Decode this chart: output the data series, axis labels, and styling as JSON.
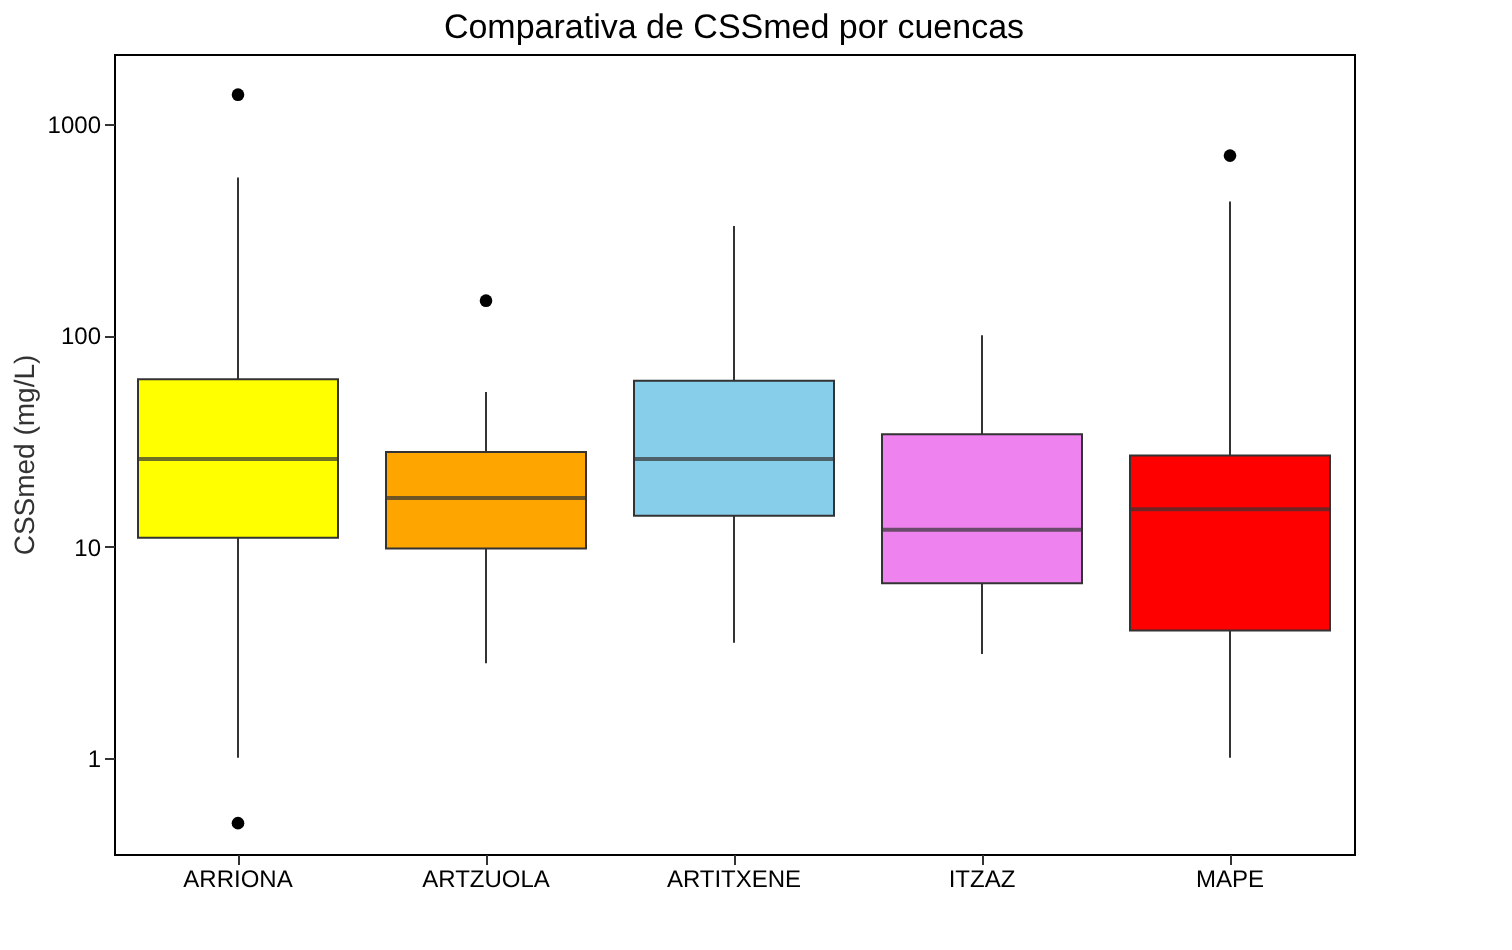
{
  "chart_data": {
    "type": "box",
    "title": "Comparativa de CSSmed por cuencas",
    "ylabel": "CSSmed (mg/L)",
    "categories": [
      "ARRIONA",
      "ARTZUOLA",
      "ARTITXENE",
      "ITZAZ",
      "MAPE"
    ],
    "colors": [
      "#ffff00",
      "#ffa500",
      "#87ceeb",
      "#ee82ee",
      "#ff0000"
    ],
    "boxes": [
      {
        "low": 1,
        "q1": 11,
        "median": 26,
        "q3": 62,
        "high": 560,
        "outliers": [
          1380,
          0.49
        ]
      },
      {
        "low": 2.8,
        "q1": 9.8,
        "median": 17,
        "q3": 28,
        "high": 54,
        "outliers": [
          146
        ]
      },
      {
        "low": 3.5,
        "q1": 14,
        "median": 26,
        "q3": 61,
        "high": 330
      },
      {
        "low": 3.1,
        "q1": 6.7,
        "median": 12,
        "q3": 34,
        "high": 100
      },
      {
        "low": 1,
        "q1": 4,
        "median": 15,
        "q3": 27,
        "high": 430,
        "outliers": [
          710
        ]
      }
    ],
    "log": true,
    "ylim": [
      0.35,
      2150
    ],
    "yticks": [
      1,
      10,
      100,
      1000
    ],
    "grid": false
  }
}
